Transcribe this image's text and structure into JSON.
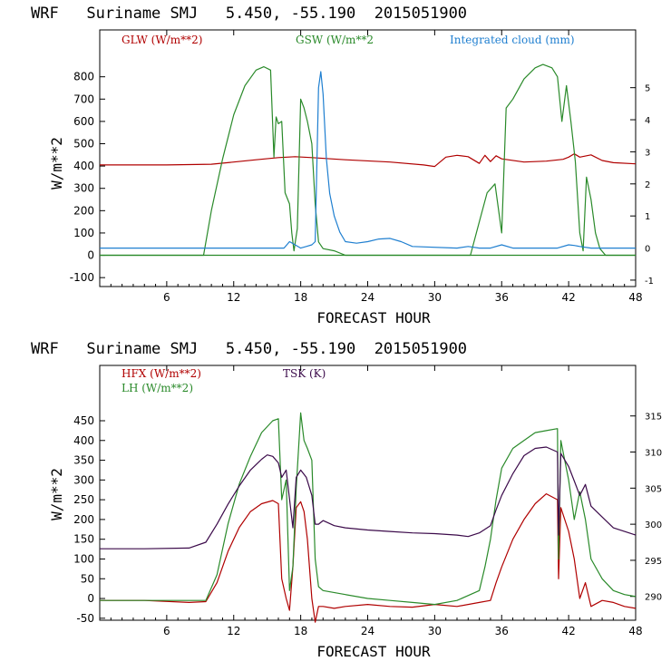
{
  "chart_data": [
    {
      "type": "line",
      "title": "WRF   Suriname SMJ   5.450, -55.190  2015051900",
      "xlabel": "FORECAST HOUR",
      "ylabel": "W/m**2",
      "xlim": [
        0,
        48
      ],
      "ylim": [
        -140,
        1010
      ],
      "xticks": [
        6,
        12,
        18,
        24,
        30,
        36,
        42,
        48
      ],
      "yticks": [
        -100,
        0,
        100,
        200,
        300,
        400,
        500,
        600,
        700,
        800
      ],
      "y2label": "",
      "y2lim": [
        -1.2,
        6.8
      ],
      "y2ticks": [
        -1,
        0,
        1,
        2,
        3,
        4,
        5
      ],
      "legend_placement": "top",
      "grid": false,
      "series": [
        {
          "name": "GLW (W/m**2)",
          "color": "#b00000",
          "axis": "left",
          "x": [
            0,
            6,
            10,
            12,
            14,
            16,
            17.5,
            19,
            22,
            26,
            29,
            30,
            31,
            32,
            33,
            34,
            34.5,
            35,
            35.5,
            36,
            38,
            40,
            41.5,
            42,
            42.5,
            43,
            44,
            45,
            46,
            48
          ],
          "y": [
            405,
            405,
            408,
            418,
            428,
            438,
            442,
            438,
            428,
            418,
            405,
            398,
            440,
            448,
            442,
            412,
            448,
            420,
            446,
            432,
            418,
            422,
            430,
            440,
            455,
            440,
            450,
            425,
            415,
            410
          ]
        },
        {
          "name": "GSW (W/m**2",
          "color": "#2a8a2a",
          "axis": "left",
          "x": [
            0,
            9.3,
            10,
            11,
            12,
            13,
            14,
            14.7,
            15.3,
            15.6,
            15.8,
            16,
            16.3,
            16.6,
            17,
            17.2,
            17.4,
            17.7,
            18,
            18.3,
            18.6,
            19,
            19.3,
            19.6,
            20,
            21,
            22,
            48
          ],
          "y": [
            0,
            0,
            200,
            430,
            630,
            760,
            830,
            845,
            830,
            440,
            620,
            590,
            600,
            280,
            230,
            100,
            20,
            120,
            700,
            660,
            600,
            500,
            230,
            60,
            30,
            20,
            0,
            0
          ],
          "x_day2": [
            0,
            33.2,
            34,
            34.7,
            35.4,
            36,
            36.4,
            37,
            38,
            39,
            39.7,
            40.5,
            41,
            41.4,
            41.8,
            42.2,
            42.6,
            43,
            43.3,
            43.6,
            44,
            44.4,
            44.8,
            45.3,
            48
          ],
          "y_day2": [
            0,
            0,
            150,
            280,
            320,
            100,
            660,
            700,
            790,
            840,
            855,
            840,
            800,
            600,
            760,
            600,
            420,
            100,
            20,
            350,
            250,
            100,
            30,
            0,
            0
          ]
        },
        {
          "name": "Integrated cloud (mm)",
          "color": "#1f7fd0",
          "axis": "right",
          "x": [
            0,
            16.5,
            17,
            17.5,
            18,
            18.5,
            19,
            19.3,
            19.6,
            19.8,
            20,
            20.3,
            20.6,
            21,
            21.5,
            22,
            23,
            24,
            25,
            26,
            27,
            28,
            32,
            33,
            34,
            35,
            36,
            37,
            41,
            42,
            42.5,
            43,
            44,
            48
          ],
          "y": [
            0,
            0,
            0.2,
            0.1,
            0,
            0.05,
            0.1,
            0.2,
            5.0,
            5.5,
            4.8,
            2.8,
            1.7,
            1.0,
            0.5,
            0.2,
            0.15,
            0.2,
            0.28,
            0.3,
            0.2,
            0.05,
            0,
            0.05,
            0,
            0,
            0.1,
            0,
            0,
            0.1,
            0.08,
            0.05,
            0,
            0
          ]
        }
      ]
    },
    {
      "type": "line",
      "title": "WRF   Suriname SMJ   5.450, -55.190  2015051900",
      "xlabel": "FORECAST HOUR",
      "ylabel": "W/m**2",
      "xlim": [
        0,
        48
      ],
      "ylim": [
        -55,
        590
      ],
      "xticks": [
        6,
        12,
        18,
        24,
        30,
        36,
        42,
        48
      ],
      "yticks": [
        -50,
        0,
        50,
        100,
        150,
        200,
        250,
        300,
        350,
        400,
        450
      ],
      "y2label": "",
      "y2lim": [
        286.7,
        322.0
      ],
      "y2ticks": [
        290,
        295,
        300,
        305,
        310,
        315
      ],
      "legend_placement": "top-left",
      "grid": false,
      "series": [
        {
          "name": "HFX (W/m**2)",
          "color": "#b00000",
          "axis": "left",
          "x": [
            0,
            4,
            8,
            9.5,
            10.5,
            11.5,
            12.5,
            13.5,
            14.5,
            15.5,
            16,
            16.3,
            16.7,
            17,
            17.3,
            17.6,
            18,
            18.3,
            18.6,
            19,
            19.3,
            19.6,
            20,
            21,
            22,
            24,
            26,
            28,
            30,
            32,
            34,
            35,
            35.5,
            36,
            37,
            38,
            39,
            40,
            41,
            41.1,
            41.3,
            42,
            42.5,
            43,
            43.5,
            44,
            45,
            46,
            47,
            48
          ],
          "y": [
            -5,
            -5,
            -10,
            -8,
            40,
            120,
            180,
            220,
            240,
            248,
            240,
            50,
            0,
            -30,
            80,
            230,
            245,
            220,
            150,
            0,
            -60,
            -20,
            -20,
            -25,
            -20,
            -15,
            -20,
            -22,
            -15,
            -20,
            -10,
            -5,
            40,
            80,
            150,
            200,
            240,
            265,
            250,
            50,
            230,
            170,
            100,
            0,
            40,
            -20,
            -5,
            -10,
            -20,
            -25
          ]
        },
        {
          "name": "LH  (W/m**2)",
          "color": "#2a8a2a",
          "axis": "left",
          "x": [
            0,
            4,
            8,
            9.5,
            10.5,
            11.5,
            12.5,
            13.5,
            14.5,
            15.5,
            16,
            16.3,
            16.7,
            17,
            17.3,
            17.6,
            18,
            18.3,
            18.6,
            19,
            19.3,
            19.6,
            20,
            22,
            24,
            26,
            28,
            30,
            32,
            34,
            34.5,
            35,
            35.5,
            36,
            37,
            38,
            39,
            40,
            41,
            41.1,
            41.3,
            42,
            42.5,
            43,
            43.5,
            44,
            45,
            46,
            47,
            48
          ],
          "y": [
            -5,
            -5,
            -5,
            -5,
            60,
            190,
            290,
            360,
            420,
            450,
            455,
            250,
            300,
            20,
            80,
            280,
            470,
            400,
            380,
            350,
            100,
            30,
            20,
            10,
            0,
            -5,
            -10,
            -15,
            -5,
            20,
            80,
            150,
            250,
            330,
            380,
            400,
            420,
            425,
            430,
            100,
            400,
            300,
            200,
            270,
            200,
            100,
            50,
            20,
            10,
            5
          ]
        },
        {
          "name": "TSK (K)",
          "color": "#3b0a4a",
          "axis": "right",
          "x": [
            0,
            4,
            8,
            9.5,
            10.5,
            11.5,
            12.5,
            13.5,
            14.5,
            15,
            15.5,
            16,
            16.3,
            16.7,
            17,
            17.3,
            17.6,
            18,
            18.5,
            19,
            19.3,
            19.6,
            20,
            21,
            22,
            24,
            26,
            28,
            30,
            32,
            33,
            34,
            35,
            35.5,
            36,
            37,
            38,
            39,
            40,
            41,
            41.1,
            41.3,
            42,
            42.5,
            43,
            43.5,
            44,
            45,
            46,
            47,
            48
          ],
          "y": [
            296.6,
            296.6,
            296.7,
            297.5,
            300.0,
            302.8,
            305.3,
            307.5,
            309.0,
            309.6,
            309.4,
            308.5,
            306.5,
            307.5,
            303.5,
            299.5,
            306.5,
            307.5,
            306.5,
            304.0,
            300.0,
            300.0,
            300.5,
            299.8,
            299.5,
            299.2,
            299.0,
            298.8,
            298.7,
            298.5,
            298.3,
            298.8,
            299.8,
            302.0,
            304.0,
            307.0,
            309.5,
            310.5,
            310.7,
            310.0,
            298.5,
            309.8,
            308.0,
            306.0,
            304.0,
            305.5,
            302.5,
            301.0,
            299.5,
            299.0,
            298.5
          ]
        }
      ]
    }
  ]
}
